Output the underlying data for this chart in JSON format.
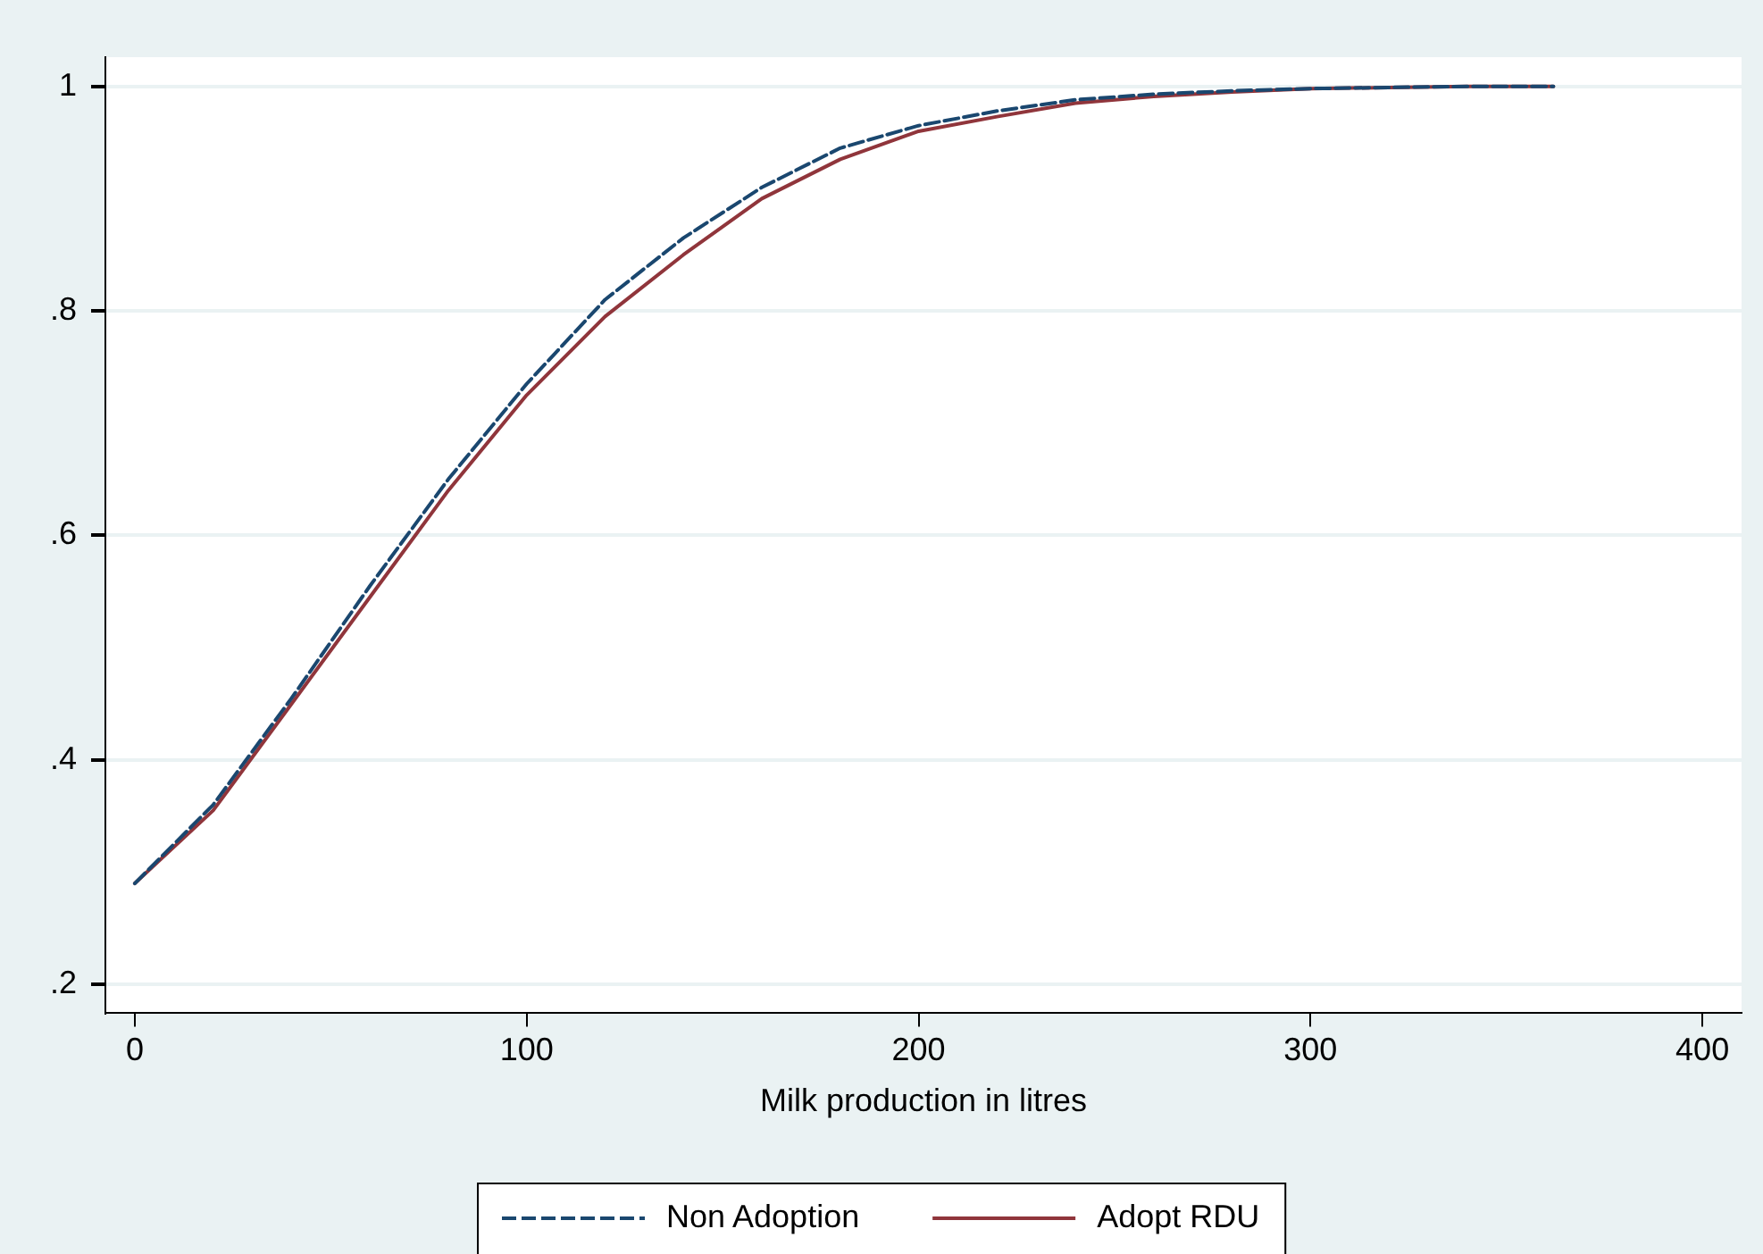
{
  "chart_data": {
    "type": "line",
    "xlabel": "Milk production in litres",
    "x": [
      0,
      20,
      40,
      60,
      80,
      100,
      120,
      140,
      160,
      180,
      200,
      220,
      240,
      260,
      280,
      300,
      320,
      340,
      362
    ],
    "series": [
      {
        "name": "Non Adoption",
        "color": "#1a476f",
        "line_style": "dashed",
        "values": [
          0.29,
          0.36,
          0.455,
          0.555,
          0.65,
          0.735,
          0.81,
          0.865,
          0.91,
          0.945,
          0.965,
          0.978,
          0.988,
          0.993,
          0.996,
          0.998,
          0.999,
          1,
          1
        ]
      },
      {
        "name": "Adopt RDU",
        "color": "#90353b",
        "line_style": "solid",
        "values": [
          0.29,
          0.355,
          0.45,
          0.545,
          0.64,
          0.725,
          0.795,
          0.85,
          0.9,
          0.935,
          0.96,
          0.973,
          0.985,
          0.991,
          0.995,
          0.998,
          0.999,
          1,
          1
        ]
      }
    ],
    "xlim": [
      -7.5,
      410
    ],
    "xticks": [
      0,
      100,
      200,
      300,
      400
    ],
    "ylim": [
      0.175,
      1.026
    ],
    "yticks": [
      {
        "value": 0.2,
        "label": ".2"
      },
      {
        "value": 0.4,
        "label": ".4"
      },
      {
        "value": 0.6,
        "label": ".6"
      },
      {
        "value": 0.8,
        "label": ".8"
      },
      {
        "value": 1,
        "label": "1"
      }
    ],
    "grid": "y",
    "legend": "bottom",
    "marker": "none"
  }
}
